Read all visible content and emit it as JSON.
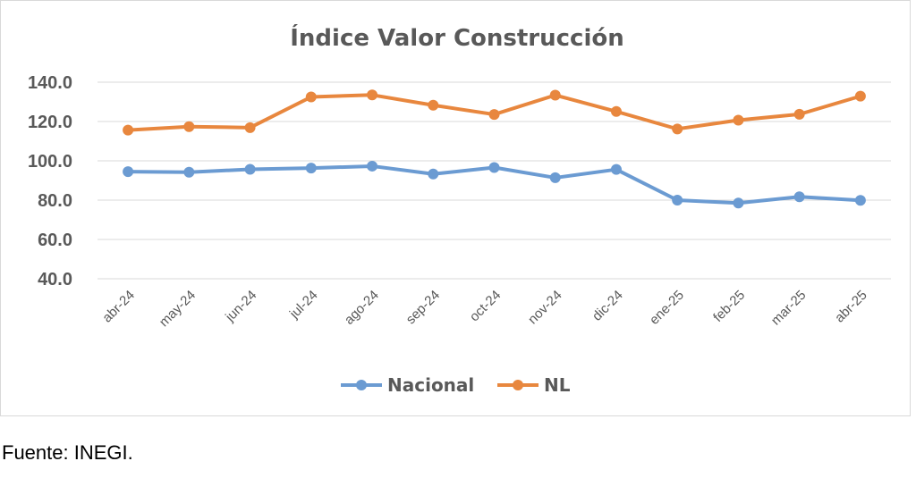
{
  "chart_data": {
    "type": "line",
    "title": "Índice Valor Construcción",
    "categories": [
      "abr-24",
      "may-24",
      "jun-24",
      "jul-24",
      "ago-24",
      "sep-24",
      "oct-24",
      "nov-24",
      "dic-24",
      "ene-25",
      "feb-25",
      "mar-25",
      "abr-25"
    ],
    "series": [
      {
        "name": "Nacional",
        "color": "#6b9bd2",
        "values": [
          94.5,
          94.2,
          95.7,
          96.3,
          97.3,
          93.3,
          96.6,
          91.4,
          95.6,
          80.0,
          78.5,
          81.7,
          79.9
        ]
      },
      {
        "name": "NL",
        "color": "#e8873e",
        "values": [
          115.6,
          117.4,
          116.9,
          132.5,
          133.5,
          128.3,
          123.6,
          133.4,
          125.1,
          116.2,
          120.7,
          123.7,
          132.9
        ]
      }
    ],
    "ylim": [
      40,
      140
    ],
    "yticks": [
      "140.0",
      "120.0",
      "100.0",
      "80.0",
      "60.0",
      "40.0"
    ],
    "ytick_values": [
      140,
      120,
      100,
      80,
      60,
      40
    ],
    "grid": true,
    "legend_position": "bottom"
  },
  "footnote": "Fuente: INEGI."
}
